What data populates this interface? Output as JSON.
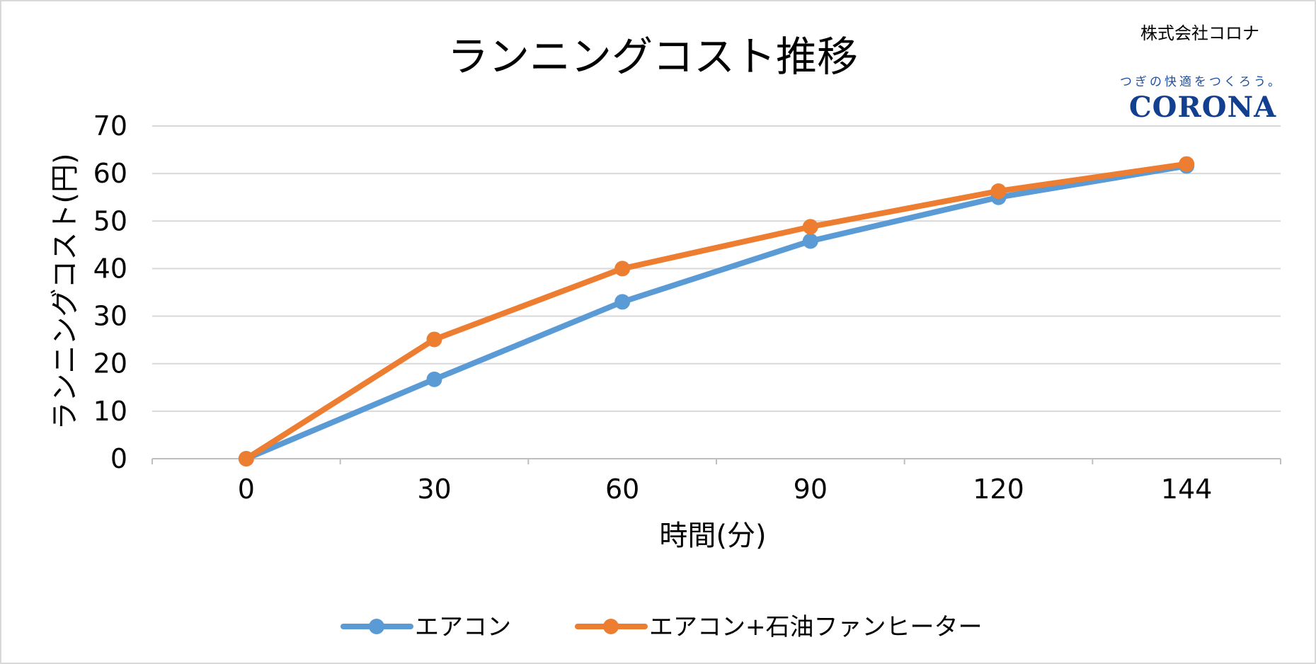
{
  "chart_data": {
    "type": "line",
    "title": "ランニングコスト推移",
    "xlabel": "時間(分)",
    "ylabel": "ランニングコスト(円)",
    "categories": [
      "0",
      "30",
      "60",
      "90",
      "120",
      "144"
    ],
    "ylim": [
      0,
      70
    ],
    "yticks": [
      0,
      10,
      20,
      30,
      40,
      50,
      60,
      70
    ],
    "grid": true,
    "legend_position": "bottom",
    "series": [
      {
        "name": "エアコン",
        "color": "#5b9bd5",
        "values": [
          0,
          16.7,
          33.0,
          45.8,
          55.0,
          61.6
        ]
      },
      {
        "name": "エアコン+石油ファンヒーター",
        "color": "#ed7d31",
        "values": [
          0,
          25.1,
          40.0,
          48.8,
          56.3,
          62.0
        ]
      }
    ]
  },
  "branding": {
    "company_name": "株式会社コロナ",
    "tagline": "つぎの快適をつくろう。",
    "logo_text": "CORONA"
  }
}
